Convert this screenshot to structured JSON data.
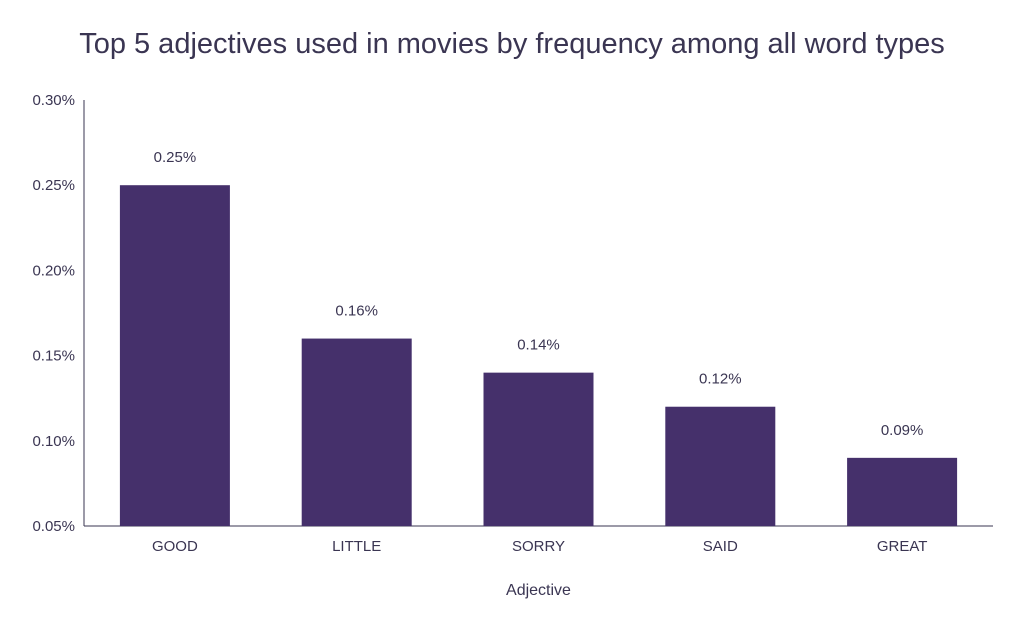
{
  "chart_data": {
    "type": "bar",
    "title": "Top 5 adjectives used in movies by frequency among all word types",
    "xlabel": "Adjective",
    "ylabel": "",
    "categories": [
      "GOOD",
      "LITTLE",
      "SORRY",
      "SAID",
      "GREAT"
    ],
    "values": [
      0.25,
      0.16,
      0.14,
      0.12,
      0.09
    ],
    "data_labels": [
      "0.25%",
      "0.16%",
      "0.14%",
      "0.12%",
      "0.09%"
    ],
    "ylim": [
      0.05,
      0.3
    ],
    "yticks": [
      0.05,
      0.1,
      0.15,
      0.2,
      0.25,
      0.3
    ],
    "ytick_labels": [
      "0.05%",
      "0.10%",
      "0.15%",
      "0.20%",
      "0.25%",
      "0.30%"
    ],
    "grid": false,
    "legend": "none",
    "colors": {
      "bar": "#45306b",
      "axis": "#3a3552",
      "text": "#3a3552"
    }
  }
}
